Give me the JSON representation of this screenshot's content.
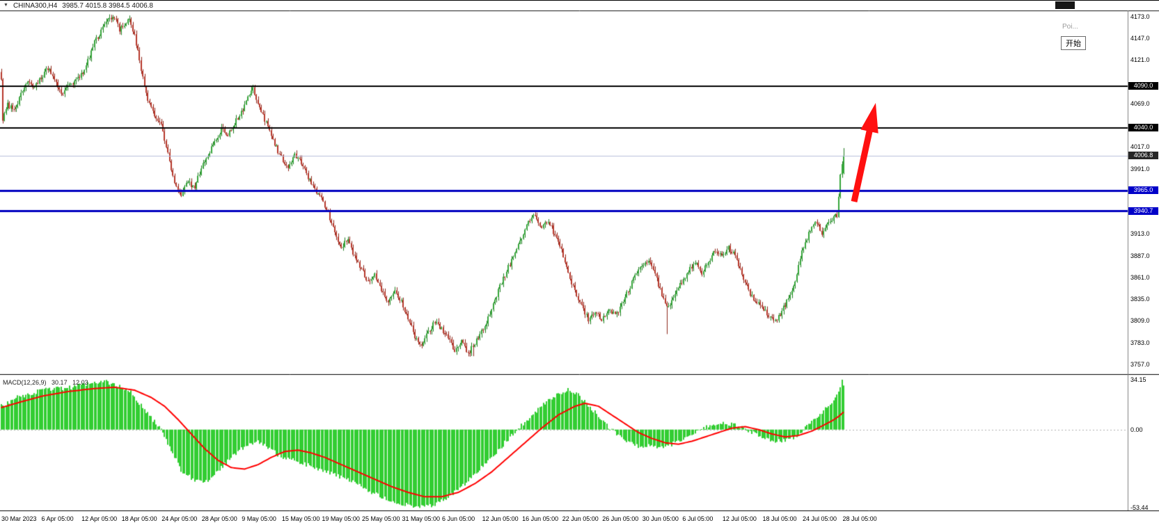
{
  "titlebar": {
    "symbol": "CHINA300,H4",
    "ohlc_text": "3985.7 4015.8 3984.5 4006.8"
  },
  "overlay": {
    "poi_text": "Poi...",
    "start_label": "开始"
  },
  "colors": {
    "bull": "#35A53A",
    "bull_wick": "#1E7A1E",
    "bear": "#B6362A",
    "bear_wick": "#8C2318",
    "hist": "#32CD32",
    "signal": "#FF0000",
    "level_black": "#000000",
    "level_blue": "#0000C0",
    "current_line": "#B8BFDC",
    "arrow": "#FF1010",
    "grid_dash": "#B0B0B0"
  },
  "chart_data": {
    "type": "candlestick",
    "symbol": "CHINA300",
    "timeframe": "H4",
    "indicator": "MACD(12,26,9)",
    "current_ohlc": {
      "open": 3985.7,
      "high": 4015.8,
      "low": 3984.5,
      "close": 4006.8
    },
    "price_axis": {
      "min": 3757.0,
      "max": 4173.0,
      "step": 26.0,
      "ticks": [
        {
          "label": "4173.0",
          "value": 4173.0
        },
        {
          "label": "4147.0",
          "value": 4147.0
        },
        {
          "label": "4121.0",
          "value": 4121.0
        },
        {
          "label": "4069.0",
          "value": 4069.0
        },
        {
          "label": "4017.0",
          "value": 4017.0
        },
        {
          "label": "3991.0",
          "value": 3991.0
        },
        {
          "label": "3913.0",
          "value": 3913.0
        },
        {
          "label": "3887.0",
          "value": 3887.0
        },
        {
          "label": "3861.0",
          "value": 3861.0
        },
        {
          "label": "3835.0",
          "value": 3835.0
        },
        {
          "label": "3809.0",
          "value": 3809.0
        },
        {
          "label": "3783.0",
          "value": 3783.0
        },
        {
          "label": "3757.0",
          "value": 3757.0
        }
      ]
    },
    "badges": [
      {
        "label": "4090.0",
        "value": 4090.0,
        "bg": "#000000"
      },
      {
        "label": "4040.0",
        "value": 4040.0,
        "bg": "#000000"
      },
      {
        "label": "4006.8",
        "value": 4006.8,
        "bg": "#262626"
      },
      {
        "label": "3965.0",
        "value": 3965.0,
        "bg": "#0000C8"
      },
      {
        "label": "3940.7",
        "value": 3940.7,
        "bg": "#0000C8"
      }
    ],
    "levels": [
      {
        "value": 4090.0,
        "color": "#000000",
        "width": 2
      },
      {
        "value": 4040.0,
        "color": "#000000",
        "width": 2
      },
      {
        "value": 3965.0,
        "color": "#0000C0",
        "width": 3
      },
      {
        "value": 3940.7,
        "color": "#0000C0",
        "width": 3
      }
    ],
    "current_price_line": {
      "value": 4006.8
    },
    "time_axis": [
      "30 Mar 2023",
      "6 Apr 05:00",
      "12 Apr 05:00",
      "18 Apr 05:00",
      "24 Apr 05:00",
      "28 Apr 05:00",
      "9 May 05:00",
      "15 May 05:00",
      "19 May 05:00",
      "25 May 05:00",
      "31 May 05:00",
      "6 Jun 05:00",
      "12 Jun 05:00",
      "16 Jun 05:00",
      "22 Jun 05:00",
      "26 Jun 05:00",
      "30 Jun 05:00",
      "6 Jul 05:00",
      "12 Jul 05:00",
      "18 Jul 05:00",
      "24 Jul 05:00",
      "28 Jul 05:00"
    ],
    "bars_total": 506,
    "price_path_anchors": [
      [
        0,
        4095
      ],
      [
        1,
        4050
      ],
      [
        4,
        4068
      ],
      [
        8,
        4060
      ],
      [
        12,
        4082
      ],
      [
        16,
        4098
      ],
      [
        20,
        4088
      ],
      [
        24,
        4100
      ],
      [
        28,
        4112
      ],
      [
        32,
        4097
      ],
      [
        36,
        4080
      ],
      [
        40,
        4090
      ],
      [
        44,
        4096
      ],
      [
        48,
        4103
      ],
      [
        52,
        4120
      ],
      [
        56,
        4142
      ],
      [
        60,
        4156
      ],
      [
        64,
        4168
      ],
      [
        68,
        4173
      ],
      [
        71,
        4158
      ],
      [
        74,
        4165
      ],
      [
        77,
        4172
      ],
      [
        80,
        4150
      ],
      [
        84,
        4110
      ],
      [
        88,
        4075
      ],
      [
        92,
        4055
      ],
      [
        96,
        4046
      ],
      [
        100,
        4008
      ],
      [
        104,
        3972
      ],
      [
        108,
        3958
      ],
      [
        112,
        3976
      ],
      [
        116,
        3968
      ],
      [
        120,
        3992
      ],
      [
        124,
        4008
      ],
      [
        128,
        4022
      ],
      [
        132,
        4038
      ],
      [
        136,
        4030
      ],
      [
        140,
        4046
      ],
      [
        144,
        4058
      ],
      [
        148,
        4076
      ],
      [
        151,
        4086
      ],
      [
        154,
        4068
      ],
      [
        158,
        4050
      ],
      [
        162,
        4030
      ],
      [
        166,
        4012
      ],
      [
        168,
        4005
      ],
      [
        172,
        3992
      ],
      [
        176,
        4008
      ],
      [
        180,
        3998
      ],
      [
        184,
        3980
      ],
      [
        188,
        3966
      ],
      [
        192,
        3955
      ],
      [
        196,
        3938
      ],
      [
        200,
        3915
      ],
      [
        204,
        3898
      ],
      [
        208,
        3906
      ],
      [
        212,
        3885
      ],
      [
        216,
        3872
      ],
      [
        220,
        3856
      ],
      [
        224,
        3863
      ],
      [
        228,
        3845
      ],
      [
        232,
        3833
      ],
      [
        236,
        3843
      ],
      [
        240,
        3832
      ],
      [
        244,
        3812
      ],
      [
        248,
        3790
      ],
      [
        252,
        3778
      ],
      [
        256,
        3796
      ],
      [
        260,
        3808
      ],
      [
        264,
        3800
      ],
      [
        268,
        3788
      ],
      [
        272,
        3774
      ],
      [
        276,
        3786
      ],
      [
        280,
        3770
      ],
      [
        284,
        3782
      ],
      [
        288,
        3796
      ],
      [
        292,
        3813
      ],
      [
        296,
        3833
      ],
      [
        300,
        3856
      ],
      [
        304,
        3873
      ],
      [
        308,
        3891
      ],
      [
        312,
        3909
      ],
      [
        316,
        3926
      ],
      [
        320,
        3936
      ],
      [
        324,
        3919
      ],
      [
        328,
        3930
      ],
      [
        332,
        3911
      ],
      [
        336,
        3894
      ],
      [
        340,
        3867
      ],
      [
        344,
        3844
      ],
      [
        348,
        3826
      ],
      [
        352,
        3811
      ],
      [
        356,
        3820
      ],
      [
        360,
        3810
      ],
      [
        364,
        3823
      ],
      [
        368,
        3815
      ],
      [
        372,
        3828
      ],
      [
        376,
        3846
      ],
      [
        380,
        3863
      ],
      [
        384,
        3876
      ],
      [
        388,
        3881
      ],
      [
        392,
        3864
      ],
      [
        396,
        3841
      ],
      [
        400,
        3824
      ],
      [
        404,
        3841
      ],
      [
        408,
        3856
      ],
      [
        412,
        3869
      ],
      [
        416,
        3879
      ],
      [
        420,
        3866
      ],
      [
        424,
        3881
      ],
      [
        428,
        3893
      ],
      [
        432,
        3886
      ],
      [
        436,
        3896
      ],
      [
        440,
        3887
      ],
      [
        444,
        3864
      ],
      [
        448,
        3845
      ],
      [
        452,
        3831
      ],
      [
        456,
        3827
      ],
      [
        460,
        3814
      ],
      [
        464,
        3808
      ],
      [
        468,
        3821
      ],
      [
        472,
        3836
      ],
      [
        476,
        3859
      ],
      [
        480,
        3891
      ],
      [
        484,
        3913
      ],
      [
        488,
        3929
      ],
      [
        492,
        3914
      ],
      [
        496,
        3926
      ],
      [
        499,
        3933
      ],
      [
        501,
        3936
      ],
      [
        503,
        3982
      ],
      [
        505,
        4007
      ]
    ],
    "wick_events": [
      {
        "bar": 283,
        "extend_low": 8
      },
      {
        "bar": 399,
        "extend_low": 32
      }
    ],
    "macd": {
      "label": "MACD(12,26,9)",
      "value_main": "30.17",
      "value_signal": "12.03",
      "current_macd": 30.17,
      "current_signal": 12.03,
      "scale_max": 34.15,
      "scale_min": -53.44,
      "axis": [
        {
          "label": "34.15",
          "value": 34.15
        },
        {
          "label": "0.00",
          "value": 0
        },
        {
          "label": "-53.44",
          "value": -53.44
        }
      ],
      "histogram_anchors": [
        [
          0,
          16
        ],
        [
          10,
          22
        ],
        [
          25,
          27
        ],
        [
          42,
          29
        ],
        [
          55,
          32
        ],
        [
          62,
          33
        ],
        [
          70,
          30
        ],
        [
          78,
          26
        ],
        [
          83,
          18
        ],
        [
          90,
          8
        ],
        [
          96,
          0
        ],
        [
          102,
          -14
        ],
        [
          108,
          -28
        ],
        [
          115,
          -34
        ],
        [
          121,
          -37
        ],
        [
          128,
          -31
        ],
        [
          133,
          -25
        ],
        [
          140,
          -17
        ],
        [
          147,
          -11
        ],
        [
          154,
          -8
        ],
        [
          160,
          -12
        ],
        [
          167,
          -18
        ],
        [
          175,
          -21
        ],
        [
          183,
          -24
        ],
        [
          192,
          -28
        ],
        [
          200,
          -31
        ],
        [
          208,
          -34
        ],
        [
          217,
          -40
        ],
        [
          228,
          -46
        ],
        [
          238,
          -50
        ],
        [
          250,
          -53
        ],
        [
          258,
          -52
        ],
        [
          267,
          -47
        ],
        [
          274,
          -41
        ],
        [
          281,
          -34
        ],
        [
          288,
          -26
        ],
        [
          295,
          -18
        ],
        [
          302,
          -9
        ],
        [
          308,
          -2
        ],
        [
          314,
          5
        ],
        [
          320,
          12
        ],
        [
          326,
          18
        ],
        [
          333,
          24
        ],
        [
          340,
          27
        ],
        [
          346,
          24
        ],
        [
          352,
          17
        ],
        [
          358,
          9
        ],
        [
          364,
          2
        ],
        [
          370,
          -4
        ],
        [
          377,
          -9
        ],
        [
          383,
          -12
        ],
        [
          390,
          -11
        ],
        [
          396,
          -12
        ],
        [
          402,
          -10
        ],
        [
          408,
          -7
        ],
        [
          414,
          -3
        ],
        [
          420,
          1
        ],
        [
          426,
          3
        ],
        [
          433,
          5
        ],
        [
          440,
          3
        ],
        [
          446,
          0
        ],
        [
          452,
          -3
        ],
        [
          458,
          -6
        ],
        [
          464,
          -8
        ],
        [
          470,
          -7
        ],
        [
          476,
          -5
        ],
        [
          481,
          0
        ],
        [
          486,
          6
        ],
        [
          491,
          11
        ],
        [
          495,
          15
        ],
        [
          498,
          18
        ],
        [
          500,
          22
        ],
        [
          502,
          26
        ],
        [
          503,
          29
        ],
        [
          504,
          34.15
        ],
        [
          505,
          30.17
        ]
      ],
      "signal_anchors": [
        [
          0,
          15
        ],
        [
          12,
          19
        ],
        [
          25,
          23
        ],
        [
          40,
          26
        ],
        [
          55,
          28
        ],
        [
          68,
          29
        ],
        [
          80,
          27
        ],
        [
          90,
          22
        ],
        [
          98,
          16
        ],
        [
          106,
          7
        ],
        [
          114,
          -3
        ],
        [
          122,
          -13
        ],
        [
          130,
          -21
        ],
        [
          138,
          -26
        ],
        [
          146,
          -27
        ],
        [
          154,
          -24
        ],
        [
          162,
          -19
        ],
        [
          170,
          -15
        ],
        [
          178,
          -14
        ],
        [
          186,
          -16
        ],
        [
          194,
          -19
        ],
        [
          204,
          -24
        ],
        [
          214,
          -29
        ],
        [
          224,
          -34
        ],
        [
          234,
          -39
        ],
        [
          244,
          -43
        ],
        [
          254,
          -46
        ],
        [
          264,
          -46
        ],
        [
          274,
          -43
        ],
        [
          284,
          -37
        ],
        [
          294,
          -29
        ],
        [
          304,
          -19
        ],
        [
          314,
          -9
        ],
        [
          324,
          1
        ],
        [
          334,
          10
        ],
        [
          344,
          16
        ],
        [
          350,
          18
        ],
        [
          358,
          16
        ],
        [
          366,
          10
        ],
        [
          374,
          4
        ],
        [
          382,
          -2
        ],
        [
          390,
          -6
        ],
        [
          398,
          -9
        ],
        [
          406,
          -10
        ],
        [
          414,
          -8
        ],
        [
          422,
          -5
        ],
        [
          430,
          -2
        ],
        [
          438,
          1
        ],
        [
          446,
          2
        ],
        [
          454,
          0
        ],
        [
          462,
          -3
        ],
        [
          470,
          -5
        ],
        [
          478,
          -4
        ],
        [
          486,
          -1
        ],
        [
          493,
          3
        ],
        [
          498,
          6
        ],
        [
          502,
          9
        ],
        [
          505,
          12.03
        ]
      ]
    }
  }
}
